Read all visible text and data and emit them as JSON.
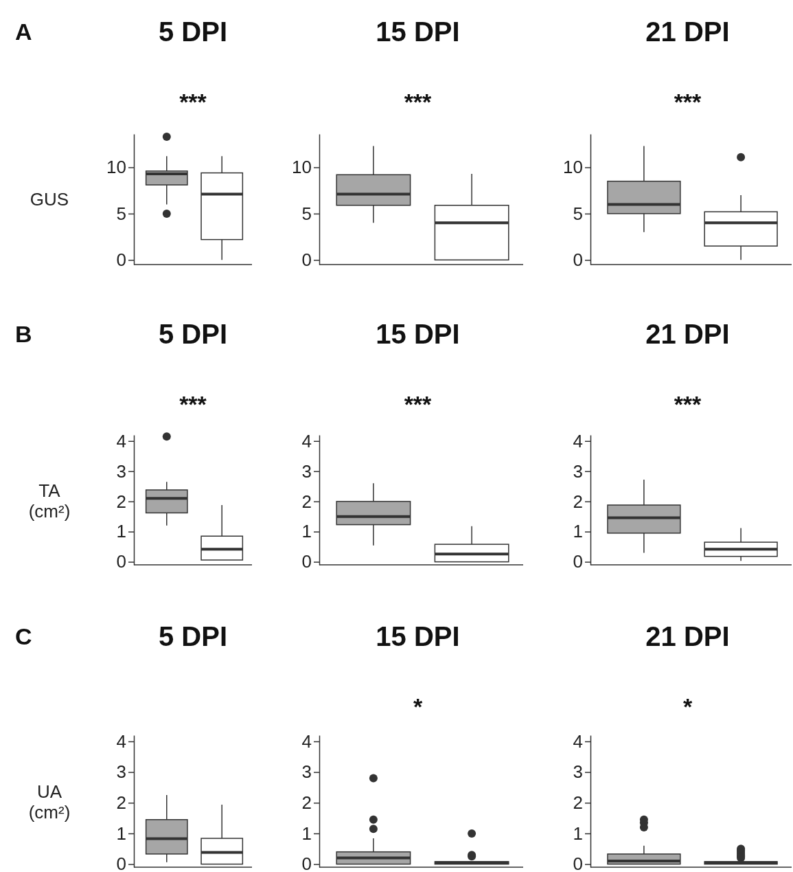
{
  "chart_data": [
    {
      "type": "box",
      "title": "5 DPI",
      "ylabel": "GUS",
      "annotations": [
        "A",
        "***"
      ],
      "categories": [
        null,
        null
      ],
      "colors": [
        "#a6a6a6",
        "#ffffff"
      ],
      "ylim": [
        -0.5,
        13.6
      ],
      "yticks": [
        0,
        5,
        10
      ],
      "grid": false,
      "boxes": [
        {
          "low": 6.0,
          "q1": 8.1,
          "median": 9.3,
          "q3": 9.6,
          "high": 11.2,
          "outliers": [
            13.3,
            5.0
          ]
        },
        {
          "low": 0,
          "q1": 2.2,
          "median": 7.1,
          "q3": 9.4,
          "high": 11.2
        }
      ]
    },
    {
      "type": "box",
      "title": "15 DPI",
      "annotations": [
        "***"
      ],
      "categories": [
        null,
        null
      ],
      "colors": [
        "#a6a6a6",
        "#ffffff"
      ],
      "ylim": [
        -0.5,
        13.6
      ],
      "yticks": [
        0,
        5,
        10
      ],
      "grid": false,
      "boxes": [
        {
          "low": 4.0,
          "q1": 5.9,
          "median": 7.1,
          "q3": 9.2,
          "high": 12.3
        },
        {
          "low": 0,
          "q1": 0,
          "median": 4.0,
          "q3": 5.9,
          "high": 9.3
        }
      ]
    },
    {
      "type": "box",
      "title": "21 DPI",
      "annotations": [
        "***"
      ],
      "categories": [
        null,
        null
      ],
      "colors": [
        "#a6a6a6",
        "#ffffff"
      ],
      "ylim": [
        -0.5,
        13.6
      ],
      "yticks": [
        0,
        5,
        10
      ],
      "grid": false,
      "boxes": [
        {
          "low": 3.0,
          "q1": 5.0,
          "median": 6.0,
          "q3": 8.5,
          "high": 12.3
        },
        {
          "low": 0,
          "q1": 1.5,
          "median": 4.0,
          "q3": 5.2,
          "high": 7.0,
          "outliers": [
            11.1
          ]
        }
      ]
    },
    {
      "type": "box",
      "title": "5 DPI",
      "ylabel": "TA (cm²)",
      "annotations": [
        "B",
        "***"
      ],
      "categories": [
        null,
        null
      ],
      "colors": [
        "#a6a6a6",
        "#ffffff"
      ],
      "ylim": [
        -0.1,
        4.2
      ],
      "yticks": [
        0,
        1,
        2,
        3,
        4
      ],
      "grid": false,
      "boxes": [
        {
          "low": 1.2,
          "q1": 1.62,
          "median": 2.1,
          "q3": 2.38,
          "high": 2.65,
          "outliers": [
            4.15
          ]
        },
        {
          "low": 0.06,
          "q1": 0.06,
          "median": 0.42,
          "q3": 0.85,
          "high": 1.88
        }
      ]
    },
    {
      "type": "box",
      "title": "15 DPI",
      "annotations": [
        "***"
      ],
      "categories": [
        null,
        null
      ],
      "colors": [
        "#a6a6a6",
        "#ffffff"
      ],
      "ylim": [
        -0.1,
        4.2
      ],
      "yticks": [
        0,
        1,
        2,
        3,
        4
      ],
      "grid": false,
      "boxes": [
        {
          "low": 0.54,
          "q1": 1.23,
          "median": 1.5,
          "q3": 2.0,
          "high": 2.6
        },
        {
          "low": 0,
          "q1": 0,
          "median": 0.26,
          "q3": 0.58,
          "high": 1.18
        }
      ]
    },
    {
      "type": "box",
      "title": "21 DPI",
      "annotations": [
        "***"
      ],
      "categories": [
        null,
        null
      ],
      "colors": [
        "#a6a6a6",
        "#ffffff"
      ],
      "ylim": [
        -0.1,
        4.2
      ],
      "yticks": [
        0,
        1,
        2,
        3,
        4
      ],
      "grid": false,
      "boxes": [
        {
          "low": 0.3,
          "q1": 0.95,
          "median": 1.46,
          "q3": 1.88,
          "high": 2.72
        },
        {
          "low": 0.03,
          "q1": 0.18,
          "median": 0.42,
          "q3": 0.65,
          "high": 1.12
        }
      ]
    },
    {
      "type": "box",
      "title": "5 DPI",
      "ylabel": "UA (cm²)",
      "annotations": [
        "C"
      ],
      "categories": [
        null,
        null
      ],
      "colors": [
        "#a6a6a6",
        "#ffffff"
      ],
      "ylim": [
        -0.1,
        4.2
      ],
      "yticks": [
        0,
        1,
        2,
        3,
        4
      ],
      "grid": false,
      "boxes": [
        {
          "low": 0.06,
          "q1": 0.33,
          "median": 0.83,
          "q3": 1.45,
          "high": 2.25
        },
        {
          "low": 0,
          "q1": 0,
          "median": 0.38,
          "q3": 0.84,
          "high": 1.94
        }
      ]
    },
    {
      "type": "box",
      "title": "15 DPI",
      "annotations": [
        "*"
      ],
      "categories": [
        null,
        null
      ],
      "colors": [
        "#a6a6a6",
        "#ffffff"
      ],
      "ylim": [
        -0.1,
        4.2
      ],
      "yticks": [
        0,
        1,
        2,
        3,
        4
      ],
      "grid": false,
      "boxes": [
        {
          "low": 0,
          "q1": 0,
          "median": 0.2,
          "q3": 0.4,
          "high": 0.84,
          "outliers": [
            2.8,
            1.45,
            1.15
          ]
        },
        {
          "low": 0,
          "q1": 0,
          "median": 0.05,
          "q3": 0.08,
          "high": 0.08,
          "outliers": [
            1.0,
            0.3,
            0.25
          ]
        }
      ]
    },
    {
      "type": "box",
      "title": "21 DPI",
      "annotations": [
        "*"
      ],
      "categories": [
        null,
        null
      ],
      "colors": [
        "#a6a6a6",
        "#ffffff"
      ],
      "ylim": [
        -0.1,
        4.2
      ],
      "yticks": [
        0,
        1,
        2,
        3,
        4
      ],
      "grid": false,
      "boxes": [
        {
          "low": 0,
          "q1": 0,
          "median": 0.1,
          "q3": 0.33,
          "high": 0.6,
          "outliers": [
            1.45,
            1.35,
            1.2
          ]
        },
        {
          "low": 0,
          "q1": 0,
          "median": 0.05,
          "q3": 0.08,
          "high": 0.08,
          "outliers": [
            0.5,
            0.45,
            0.4,
            0.35,
            0.3,
            0.25,
            0.2
          ]
        }
      ]
    }
  ]
}
